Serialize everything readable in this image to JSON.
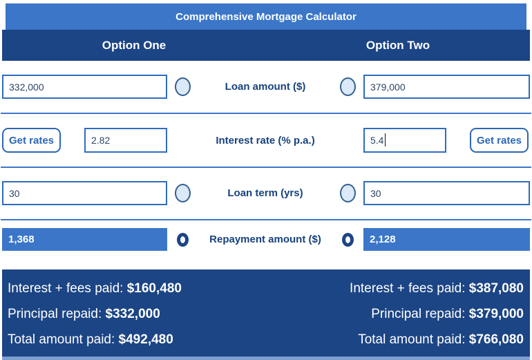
{
  "title": "Comprehensive Mortgage Calculator",
  "headers": {
    "option_one": "Option One",
    "option_two": "Option Two"
  },
  "loan_amount": {
    "label": "Loan amount ($)",
    "left_value": "332,000",
    "right_value": "379,000"
  },
  "interest_rate": {
    "label": "Interest rate (% p.a.)",
    "left_value": "2.82",
    "right_value": "5.4",
    "get_rates_label": "Get rates"
  },
  "loan_term": {
    "label": "Loan term (yrs)",
    "left_value": "30",
    "right_value": "30"
  },
  "repayment": {
    "label": "Repayment amount ($)",
    "left_value": "1,368",
    "right_value": "2,128",
    "selected": true
  },
  "results": {
    "left": {
      "interest_label": "Interest + fees paid:",
      "interest_value": "$160,480",
      "principal_label": "Principal repaid:",
      "principal_value": "$332,000",
      "total_label": "Total amount paid:",
      "total_value": "$492,480"
    },
    "right": {
      "interest_label": "Interest + fees paid:",
      "interest_value": "$387,080",
      "principal_label": "Principal repaid:",
      "principal_value": "$379,000",
      "total_label": "Total amount paid:",
      "total_value": "$766,080"
    }
  },
  "colors": {
    "accent_blue": "#3b76c8",
    "navy": "#1c4585",
    "input_border_blue": "#2e6cc0",
    "radio_fill": "#dce9f8",
    "label_navy": "#17427c",
    "bottom_strip": "#7d9fce"
  }
}
